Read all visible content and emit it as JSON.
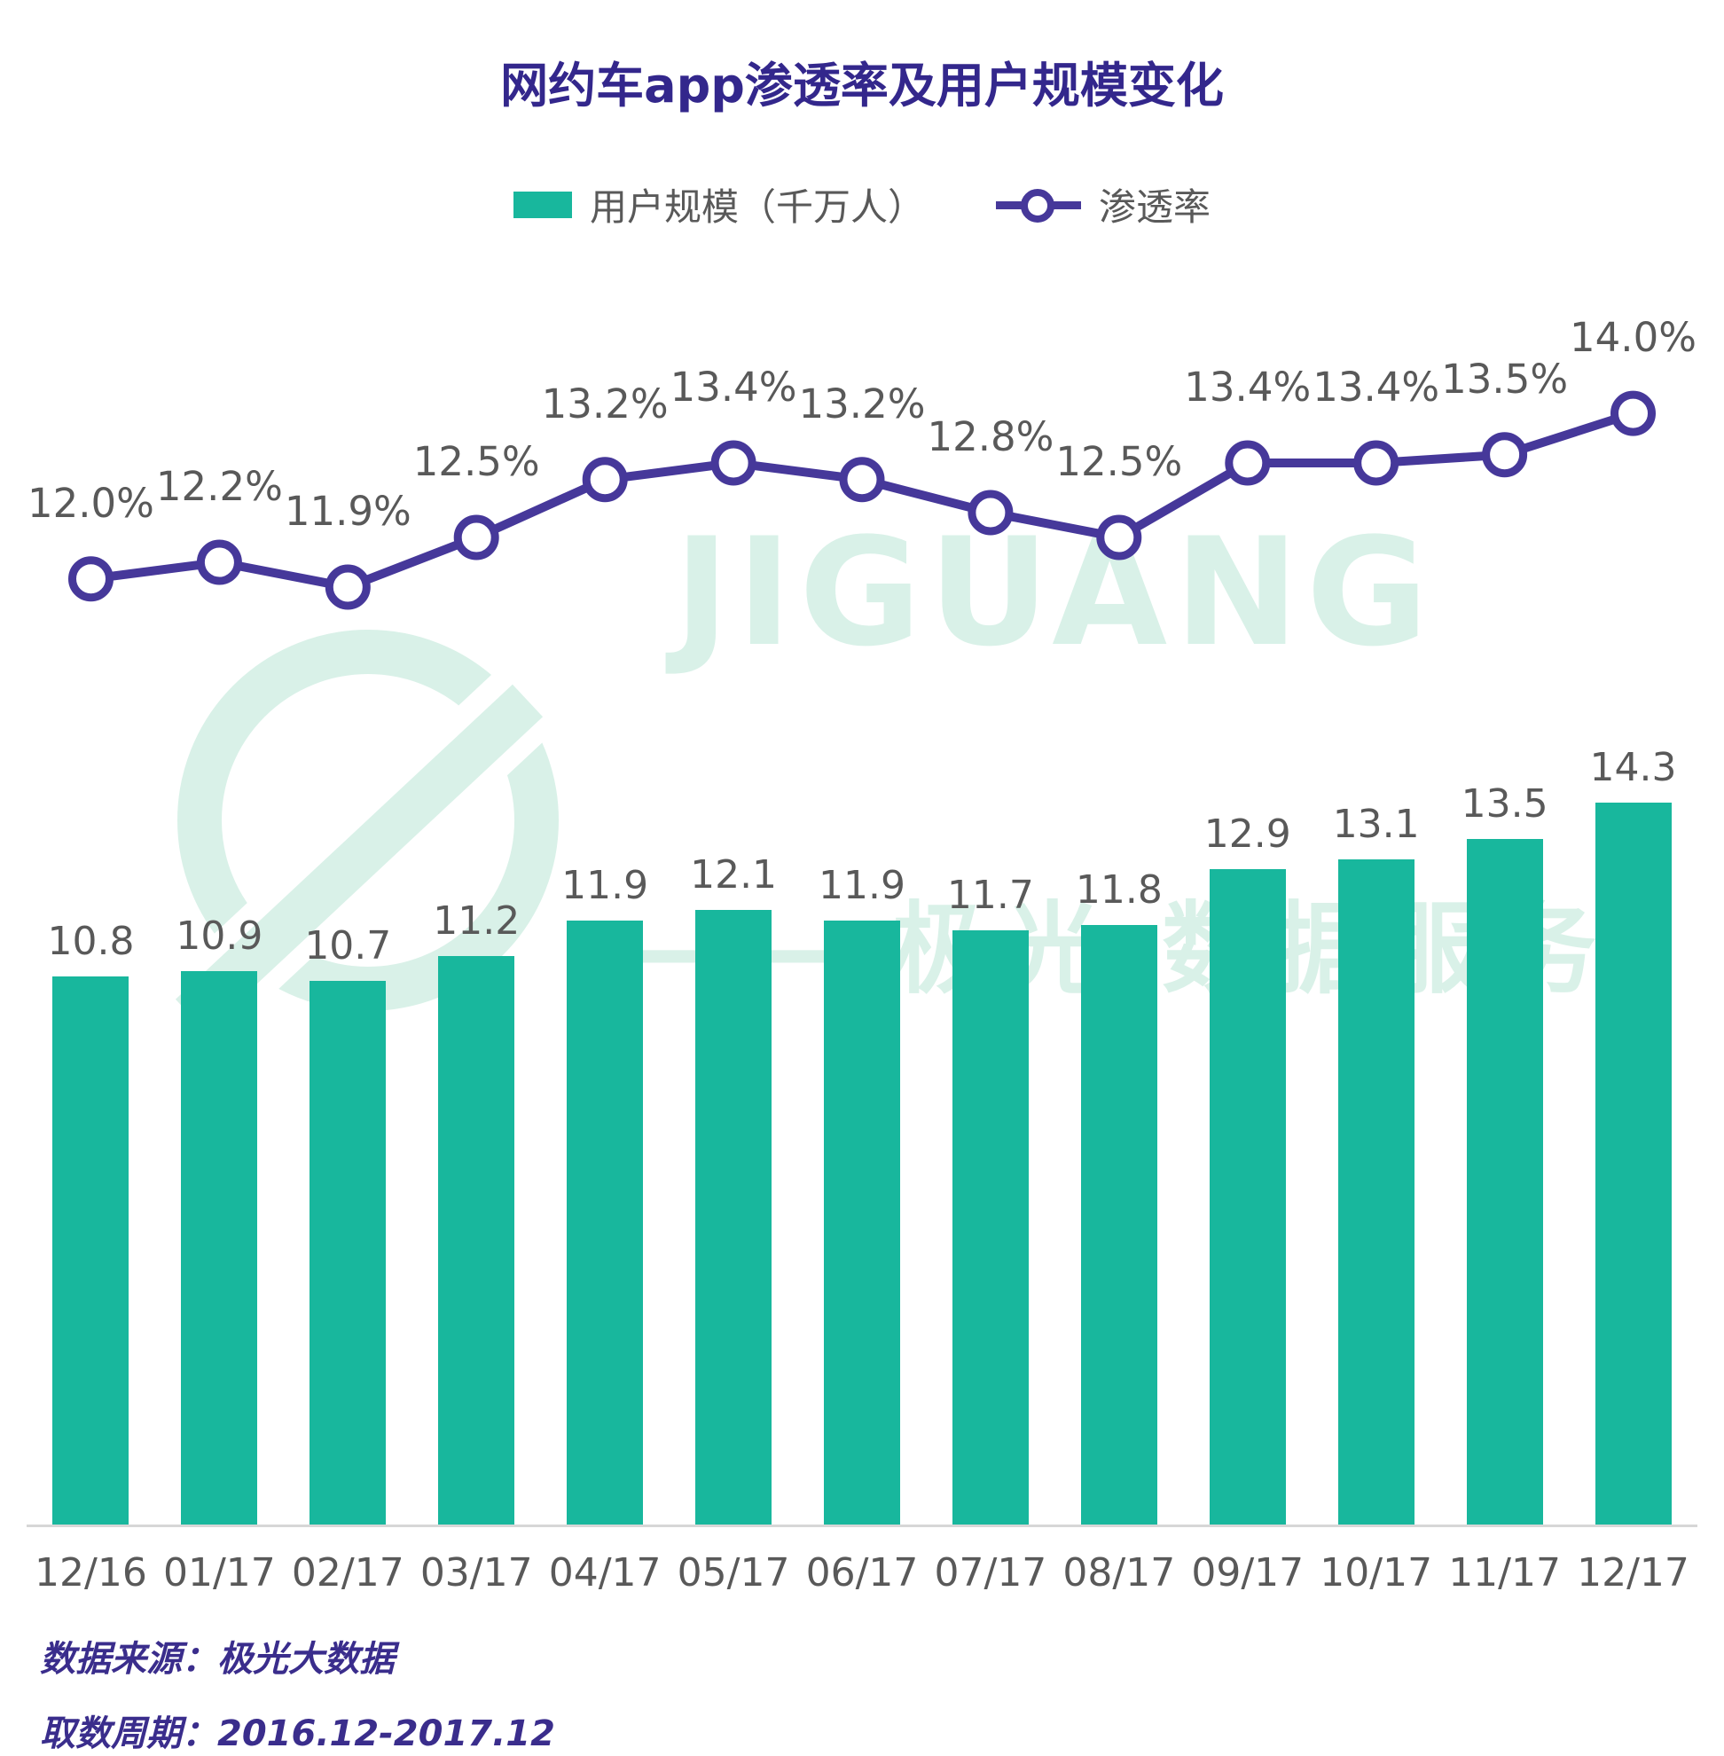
{
  "title": "网约车app渗透率及用户规模变化",
  "legend": {
    "bar_label": "用户规模（千万人）",
    "line_label": "渗透率"
  },
  "watermark": {
    "brand": "JIGUANG",
    "brand_cn": "—— 极光 数据服务"
  },
  "footer": {
    "source": "数据来源：极光大数据",
    "period": "取数周期：2016.12-2017.12"
  },
  "colors": {
    "bar": "#18b79d",
    "line": "#46389a",
    "title": "#33278c",
    "text": "#595959",
    "footer": "#3a2d8c",
    "watermark": "#d9f1e8"
  },
  "chart_data": {
    "type": "bar",
    "title": "网约车app渗透率及用户规模变化",
    "categories": [
      "12/16",
      "01/17",
      "02/17",
      "03/17",
      "04/17",
      "05/17",
      "06/17",
      "07/17",
      "08/17",
      "09/17",
      "10/17",
      "11/17",
      "12/17"
    ],
    "series": [
      {
        "name": "用户规模（千万人）",
        "type": "bar",
        "unit": "千万人",
        "values": [
          10.8,
          10.9,
          10.7,
          11.2,
          11.9,
          12.1,
          11.9,
          11.7,
          11.8,
          12.9,
          13.1,
          13.5,
          14.3
        ]
      },
      {
        "name": "渗透率",
        "type": "line",
        "unit": "%",
        "values": [
          12.0,
          12.2,
          11.9,
          12.5,
          13.2,
          13.4,
          13.2,
          12.8,
          12.5,
          13.4,
          13.4,
          13.5,
          14.0
        ]
      }
    ],
    "bar_ylim": [
      0,
      14.3
    ],
    "line_ylim": [
      11.5,
      14.5
    ],
    "grid": false,
    "legend_position": "top"
  }
}
